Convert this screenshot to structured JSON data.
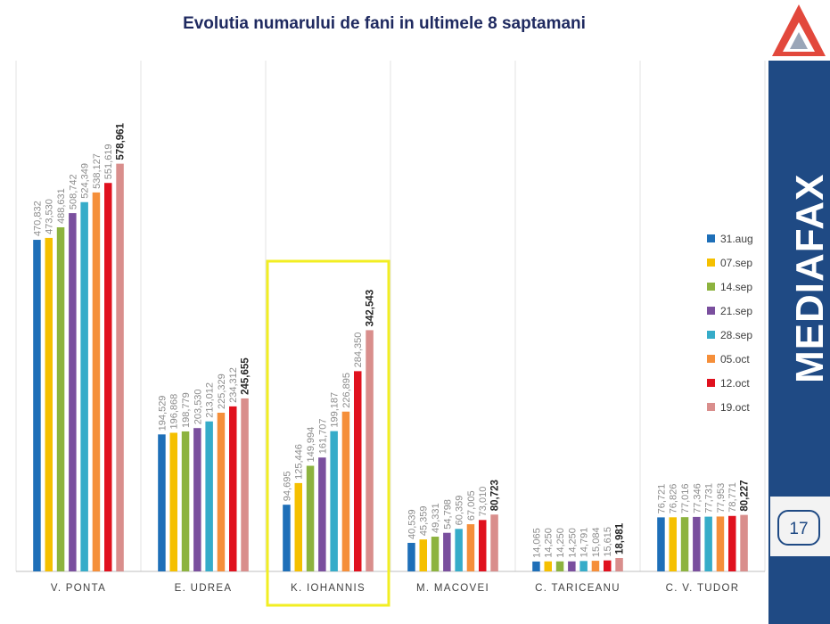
{
  "title": "Evolutia numarului de fani in ultimele 8 saptamani",
  "brand": "MEDIAFAX",
  "page_number": "17",
  "logo_icon": "mediafax-triangle-logo-icon",
  "colors": {
    "sidebar": "#1f4a84",
    "title": "#1f2a60",
    "highlight": "#f2ee22",
    "logo": "#e2483c"
  },
  "highlighted_category": "K. IOHANNIS",
  "chart_data": {
    "type": "bar",
    "title": "Evolutia numarului de fani in ultimele 8 saptamani",
    "xlabel": "",
    "ylabel": "",
    "ylim": [
      0,
      600000
    ],
    "grid": false,
    "legend_position": "right",
    "categories": [
      "V. PONTA",
      "E. UDREA",
      "K. IOHANNIS",
      "M. MACOVEI",
      "C. TARICEANU",
      "C. V. TUDOR"
    ],
    "series": [
      {
        "name": "31.aug",
        "color": "#1e6fb8",
        "values": [
          470832,
          194529,
          94695,
          40539,
          14065,
          76721
        ],
        "labels": [
          "470,832",
          "194,529",
          "94,695",
          "40,539",
          "14,065",
          "76,721"
        ]
      },
      {
        "name": "07.sep",
        "color": "#f5c000",
        "values": [
          473530,
          196868,
          125446,
          45359,
          14250,
          76826
        ],
        "labels": [
          "473,530",
          "196,868",
          "125,446",
          "45,359",
          "14,250",
          "76,826"
        ]
      },
      {
        "name": "14.sep",
        "color": "#8db33f",
        "values": [
          488631,
          198779,
          149994,
          49331,
          14250,
          77016
        ],
        "labels": [
          "488,631",
          "198,779",
          "149,994",
          "49,331",
          "14,250",
          "77,016"
        ]
      },
      {
        "name": "21.sep",
        "color": "#7a4f9e",
        "values": [
          508742,
          203530,
          161707,
          54798,
          14250,
          77346
        ],
        "labels": [
          "508,742",
          "203,530",
          "161,707",
          "54,798",
          "14,250",
          "77,346"
        ]
      },
      {
        "name": "28.sep",
        "color": "#36acc9",
        "values": [
          524349,
          213012,
          199187,
          60359,
          14791,
          77731
        ],
        "labels": [
          "524,349",
          "213,012",
          "199,187",
          "60,359",
          "14,791",
          "77,731"
        ]
      },
      {
        "name": "05.oct",
        "color": "#f58f3a",
        "values": [
          538127,
          225329,
          226895,
          67005,
          15084,
          77953
        ],
        "labels": [
          "538,127",
          "225,329",
          "226,895",
          "67,005",
          "15,084",
          "77,953"
        ]
      },
      {
        "name": "12.oct",
        "color": "#e0111e",
        "values": [
          551619,
          234312,
          284350,
          73010,
          15615,
          78771
        ],
        "labels": [
          "551,619",
          "234,312",
          "284,350",
          "73,010",
          "15,615",
          "78,771"
        ]
      },
      {
        "name": "19.oct",
        "color": "#d98e8c",
        "values": [
          578961,
          245655,
          342543,
          80723,
          18981,
          80227
        ],
        "labels": [
          "578,961",
          "245,655",
          "342,543",
          "80,723",
          "18,981",
          "80,227"
        ]
      }
    ]
  }
}
